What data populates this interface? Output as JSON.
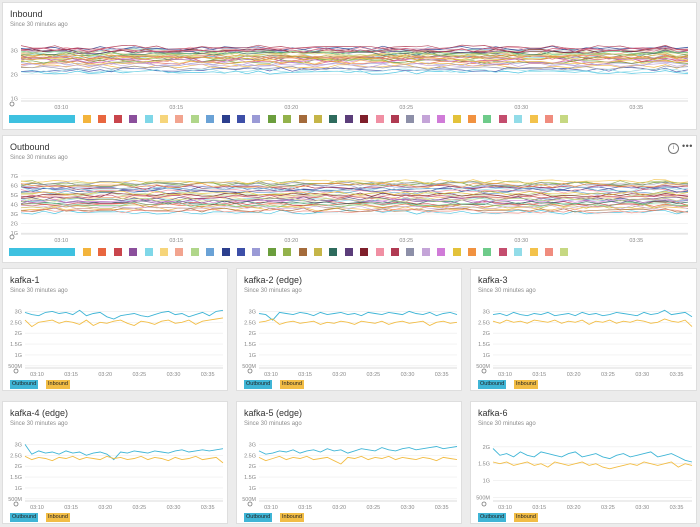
{
  "panels": {
    "inbound": {
      "title": "Inbound",
      "subtitle": "Since 30 minutes ago"
    },
    "outbound": {
      "title": "Outbound",
      "subtitle": "Since 30 minutes ago",
      "info_icon": "info-icon",
      "more_icon": "more-icon"
    },
    "k1": {
      "title": "kafka-1",
      "subtitle": "Since 30 minutes ago"
    },
    "k2": {
      "title": "kafka-2 (edge)",
      "subtitle": "Since 30 minutes ago"
    },
    "k3": {
      "title": "kafka-3",
      "subtitle": "Since 30 minutes ago"
    },
    "k4": {
      "title": "kafka-4 (edge)",
      "subtitle": "Since 30 minutes ago"
    },
    "k5": {
      "title": "kafka-5 (edge)",
      "subtitle": "Since 30 minutes ago"
    },
    "k6": {
      "title": "kafka-6",
      "subtitle": "Since 30 minutes ago"
    }
  },
  "legend": {
    "outbound": "Outbound",
    "inbound": "Inbound"
  },
  "colors": {
    "outbound": "#3fb5d6",
    "inbound": "#f2bd45"
  },
  "palette": [
    "#3ec1e0",
    "#f3b43c",
    "#e8663f",
    "#c9454c",
    "#8b4f9c",
    "#7fd7e8",
    "#f6d57b",
    "#f2a48f",
    "#b0d68a",
    "#6aa2d6",
    "#2c3f8e",
    "#3d4fa8",
    "#9a9ad6",
    "#6b9e3d",
    "#93b24b",
    "#a46b3b",
    "#c5b548",
    "#2e6b5d",
    "#5b3d7a",
    "#7f1f2b",
    "#f08fa3",
    "#b03a52",
    "#8d8fa8",
    "#c4a4d8",
    "#d07bd8",
    "#e3c23a",
    "#f19240",
    "#6ecb8a",
    "#c44d6e",
    "#92dce8",
    "#f3c24b",
    "#f08c7e",
    "#c6d882"
  ],
  "chart_data": [
    {
      "id": "inbound",
      "type": "line",
      "title": "Inbound",
      "subtitle": "Since 30 minutes ago",
      "x_ticks": [
        "03:10",
        "03:15",
        "03:20",
        "03:25",
        "03:30",
        "03:35"
      ],
      "y_ticks": [
        "1G",
        "2G",
        "3G"
      ],
      "ylim": [
        0.9,
        3.4
      ],
      "grid": true,
      "series_count": 33,
      "series_bands": [
        2.1,
        2.35,
        2.5,
        2.62,
        2.7,
        2.78,
        2.85,
        2.92,
        2.98,
        3.04,
        3.1,
        2.2,
        2.45,
        2.55,
        2.66,
        2.74,
        2.82,
        2.88,
        2.95,
        3.0,
        3.06,
        3.14,
        2.28,
        2.4,
        2.58,
        2.68,
        2.76,
        2.9,
        3.02,
        2.15,
        2.52,
        2.72,
        2.86
      ]
    },
    {
      "id": "outbound",
      "type": "line",
      "title": "Outbound",
      "subtitle": "Since 30 minutes ago",
      "x_ticks": [
        "03:10",
        "03:15",
        "03:20",
        "03:25",
        "03:30",
        "03:35"
      ],
      "y_ticks": [
        "1G",
        "2G",
        "3G",
        "4G",
        "5G",
        "6G",
        "7G"
      ],
      "ylim": [
        0.9,
        7.2
      ],
      "grid": true,
      "series_count": 33,
      "series_bands": [
        3.2,
        3.6,
        3.9,
        4.1,
        4.3,
        4.5,
        4.7,
        4.9,
        5.1,
        5.3,
        5.5,
        5.7,
        5.9,
        6.1,
        6.3,
        3.4,
        3.8,
        4.2,
        4.6,
        5.0,
        5.4,
        5.8,
        6.2,
        3.7,
        4.4,
        5.2,
        6.0,
        4.0,
        4.8,
        5.6,
        6.4,
        3.3,
        4.5
      ]
    },
    {
      "id": "k1",
      "type": "line",
      "title": "kafka-1",
      "subtitle": "Since 30 minutes ago",
      "x_ticks": [
        "03:10",
        "03:15",
        "03:20",
        "03:25",
        "03:30",
        "03:35"
      ],
      "y_ticks": [
        "500M",
        "1G",
        "1.5G",
        "2G",
        "2.5G",
        "3G"
      ],
      "ylim": [
        0.4,
        3.2
      ],
      "grid": true,
      "series": [
        {
          "name": "Outbound",
          "values": [
            2.95,
            2.85,
            2.8,
            2.95,
            3.0,
            2.9,
            2.95,
            2.85,
            3.05,
            2.8,
            2.9,
            2.95,
            2.75,
            2.65,
            2.8,
            2.85,
            2.9,
            2.8,
            2.75,
            2.85,
            2.95,
            3.0,
            2.85,
            2.9,
            2.75,
            2.85,
            2.95,
            2.8,
            3.0,
            3.05
          ]
        },
        {
          "name": "Inbound",
          "values": [
            2.6,
            2.3,
            2.5,
            2.55,
            2.6,
            2.45,
            2.55,
            2.5,
            2.4,
            2.6,
            2.35,
            2.5,
            2.45,
            2.55,
            2.6,
            2.45,
            2.35,
            2.55,
            2.5,
            2.4,
            2.55,
            2.6,
            2.45,
            2.5,
            2.6,
            2.4,
            2.55,
            2.6,
            2.65,
            2.7
          ]
        }
      ]
    },
    {
      "id": "k2",
      "type": "line",
      "title": "kafka-2 (edge)",
      "subtitle": "Since 30 minutes ago",
      "x_ticks": [
        "03:10",
        "03:15",
        "03:20",
        "03:25",
        "03:30",
        "03:35"
      ],
      "y_ticks": [
        "500M",
        "1G",
        "1.5G",
        "2G",
        "2.5G",
        "3G"
      ],
      "ylim": [
        0.4,
        3.2
      ],
      "grid": true,
      "series": [
        {
          "name": "Outbound",
          "values": [
            2.9,
            2.85,
            2.6,
            2.95,
            2.9,
            2.85,
            2.95,
            2.9,
            2.8,
            2.95,
            2.85,
            2.9,
            2.95,
            2.85,
            2.9,
            2.8,
            2.95,
            2.9,
            2.85,
            2.95,
            2.9,
            2.85,
            3.0,
            2.9,
            2.85,
            2.95,
            2.8,
            2.9,
            2.95,
            2.85
          ]
        },
        {
          "name": "Inbound",
          "values": [
            2.5,
            2.55,
            2.65,
            2.4,
            2.5,
            2.55,
            2.45,
            2.5,
            2.55,
            2.4,
            2.5,
            2.45,
            2.55,
            2.5,
            2.4,
            2.55,
            2.5,
            2.45,
            2.55,
            2.4,
            2.5,
            2.55,
            2.45,
            2.5,
            2.55,
            2.35,
            2.5,
            2.55,
            2.45,
            2.5
          ]
        }
      ]
    },
    {
      "id": "k3",
      "type": "line",
      "title": "kafka-3",
      "subtitle": "Since 30 minutes ago",
      "x_ticks": [
        "03:10",
        "03:15",
        "03:20",
        "03:25",
        "03:30",
        "03:35"
      ],
      "y_ticks": [
        "500M",
        "1G",
        "1.5G",
        "2G",
        "2.5G",
        "3G"
      ],
      "ylim": [
        0.4,
        3.2
      ],
      "grid": true,
      "series": [
        {
          "name": "Outbound",
          "values": [
            2.85,
            2.9,
            2.8,
            2.95,
            2.85,
            2.8,
            2.9,
            2.85,
            2.95,
            2.8,
            2.85,
            2.9,
            2.8,
            2.95,
            2.85,
            2.9,
            2.8,
            2.85,
            2.95,
            2.9,
            2.85,
            2.8,
            2.95,
            2.85,
            2.9,
            3.05,
            2.85,
            2.9,
            2.95,
            2.75
          ]
        },
        {
          "name": "Inbound",
          "values": [
            2.55,
            2.45,
            2.6,
            2.5,
            2.55,
            2.45,
            2.6,
            2.55,
            2.5,
            2.6,
            2.45,
            2.55,
            2.5,
            2.6,
            2.4,
            2.55,
            2.5,
            2.6,
            2.45,
            2.55,
            2.5,
            2.6,
            2.55,
            2.45,
            2.5,
            2.65,
            2.55,
            2.5,
            2.6,
            2.3
          ]
        }
      ]
    },
    {
      "id": "k4",
      "type": "line",
      "title": "kafka-4 (edge)",
      "subtitle": "Since 30 minutes ago",
      "x_ticks": [
        "03:10",
        "03:15",
        "03:20",
        "03:25",
        "03:30",
        "03:35"
      ],
      "y_ticks": [
        "500M",
        "1G",
        "1.5G",
        "2G",
        "2.5G",
        "3G"
      ],
      "ylim": [
        0.4,
        3.2
      ],
      "grid": true,
      "series": [
        {
          "name": "Outbound",
          "values": [
            3.0,
            2.55,
            2.7,
            2.6,
            2.65,
            2.55,
            2.7,
            2.6,
            2.65,
            2.5,
            2.6,
            2.65,
            2.55,
            2.3,
            2.65,
            2.6,
            2.7,
            2.65,
            2.6,
            2.7,
            2.65,
            2.6,
            2.7,
            2.75,
            2.65,
            2.7,
            2.75,
            2.7,
            2.75,
            2.8
          ]
        },
        {
          "name": "Inbound",
          "values": [
            2.45,
            2.3,
            2.4,
            2.35,
            2.25,
            2.4,
            2.35,
            2.45,
            2.3,
            2.4,
            2.35,
            2.3,
            2.45,
            2.35,
            2.4,
            2.3,
            2.35,
            2.45,
            2.3,
            2.4,
            2.35,
            2.25,
            2.4,
            2.3,
            2.35,
            2.45,
            2.3,
            2.35,
            2.4,
            2.15
          ]
        }
      ]
    },
    {
      "id": "k5",
      "type": "line",
      "title": "kafka-5 (edge)",
      "subtitle": "Since 30 minutes ago",
      "x_ticks": [
        "03:10",
        "03:15",
        "03:20",
        "03:25",
        "03:30",
        "03:35"
      ],
      "y_ticks": [
        "500M",
        "1G",
        "1.5G",
        "2G",
        "2.5G",
        "3G"
      ],
      "ylim": [
        0.4,
        3.2
      ],
      "grid": true,
      "series": [
        {
          "name": "Outbound",
          "values": [
            2.7,
            2.55,
            2.6,
            2.7,
            2.65,
            2.75,
            2.6,
            2.7,
            2.75,
            2.65,
            2.8,
            2.7,
            2.75,
            2.6,
            2.7,
            2.8,
            2.75,
            2.7,
            2.85,
            2.75,
            2.7,
            2.8,
            2.85,
            2.75,
            2.8,
            2.85,
            2.9,
            2.8,
            2.85,
            2.9
          ]
        },
        {
          "name": "Inbound",
          "values": [
            2.4,
            2.25,
            2.35,
            2.45,
            2.3,
            2.4,
            2.35,
            2.45,
            2.3,
            2.35,
            2.4,
            2.25,
            2.1,
            2.4,
            2.35,
            2.45,
            2.3,
            2.4,
            2.35,
            2.45,
            2.3,
            2.4,
            2.35,
            2.3,
            2.4,
            2.35,
            2.25,
            2.4,
            2.35,
            2.3
          ]
        }
      ]
    },
    {
      "id": "k6",
      "type": "line",
      "title": "kafka-6",
      "subtitle": "Since 30 minutes ago",
      "x_ticks": [
        "03:10",
        "03:15",
        "03:20",
        "03:25",
        "03:30",
        "03:35"
      ],
      "y_ticks": [
        "500M",
        "1G",
        "1.5G",
        "2G"
      ],
      "ylim": [
        0.4,
        2.2
      ],
      "grid": true,
      "series": [
        {
          "name": "Outbound",
          "values": [
            1.95,
            1.75,
            1.8,
            1.7,
            1.85,
            1.75,
            1.7,
            1.85,
            1.8,
            1.75,
            1.7,
            1.8,
            1.85,
            1.7,
            1.75,
            1.8,
            1.7,
            1.65,
            1.75,
            1.8,
            1.7,
            1.75,
            1.8,
            1.85,
            1.7,
            1.75,
            1.8,
            1.7,
            1.6,
            1.55
          ]
        },
        {
          "name": "Inbound",
          "values": [
            1.55,
            1.5,
            1.55,
            1.45,
            1.5,
            1.55,
            1.45,
            1.5,
            1.4,
            1.55,
            1.5,
            1.45,
            1.5,
            1.55,
            1.45,
            1.5,
            1.4,
            1.35,
            1.4,
            1.45,
            1.5,
            1.45,
            1.55,
            1.5,
            1.45,
            1.5,
            1.55,
            1.4,
            1.5,
            1.45
          ]
        }
      ]
    }
  ]
}
